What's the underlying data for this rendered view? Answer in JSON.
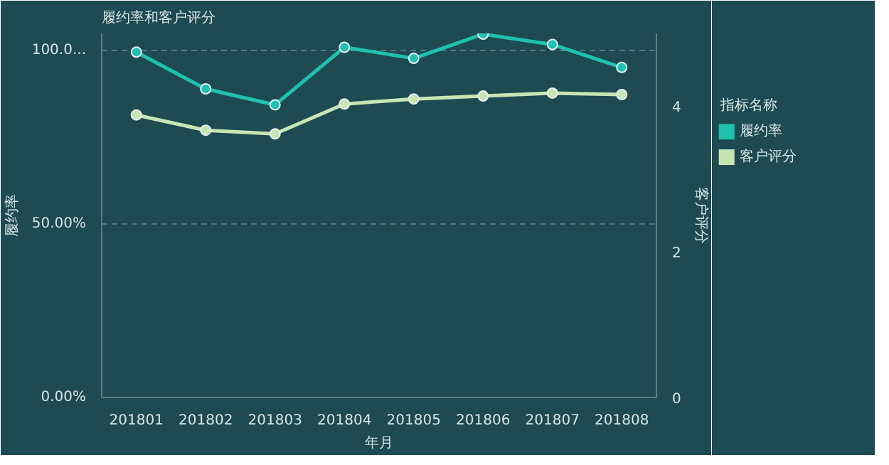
{
  "chart_data": {
    "type": "line",
    "title": "履约率和客户评分",
    "xlabel": "年月",
    "ylabel": "履约率",
    "y2label": "客户评分",
    "legend_title": "指标名称",
    "categories": [
      "201801",
      "201802",
      "201803",
      "201804",
      "201805",
      "201806",
      "201807",
      "201808"
    ],
    "series": [
      {
        "name": "履约率",
        "color": "#1fc1b0",
        "values": [
          99.6,
          89,
          84.4,
          101,
          97.8,
          104.8,
          101.8,
          95.2
        ]
      },
      {
        "name": "客户评分",
        "color": "#c8e6b4",
        "axis": "y2",
        "values": [
          3.88,
          3.67,
          3.62,
          4.03,
          4.1,
          4.14,
          4.18,
          4.16
        ]
      }
    ],
    "ylim": [
      0,
      105
    ],
    "yticks": [
      {
        "value": 0,
        "label": "0.00%"
      },
      {
        "value": 50,
        "label": "50.00%"
      },
      {
        "value": 100,
        "label": "100.0..."
      }
    ],
    "y2lim": [
      0,
      5
    ],
    "y2ticks": [
      0,
      2,
      4
    ],
    "grid": "y",
    "legend": "right",
    "marker": "circle",
    "line_style": "solid"
  }
}
